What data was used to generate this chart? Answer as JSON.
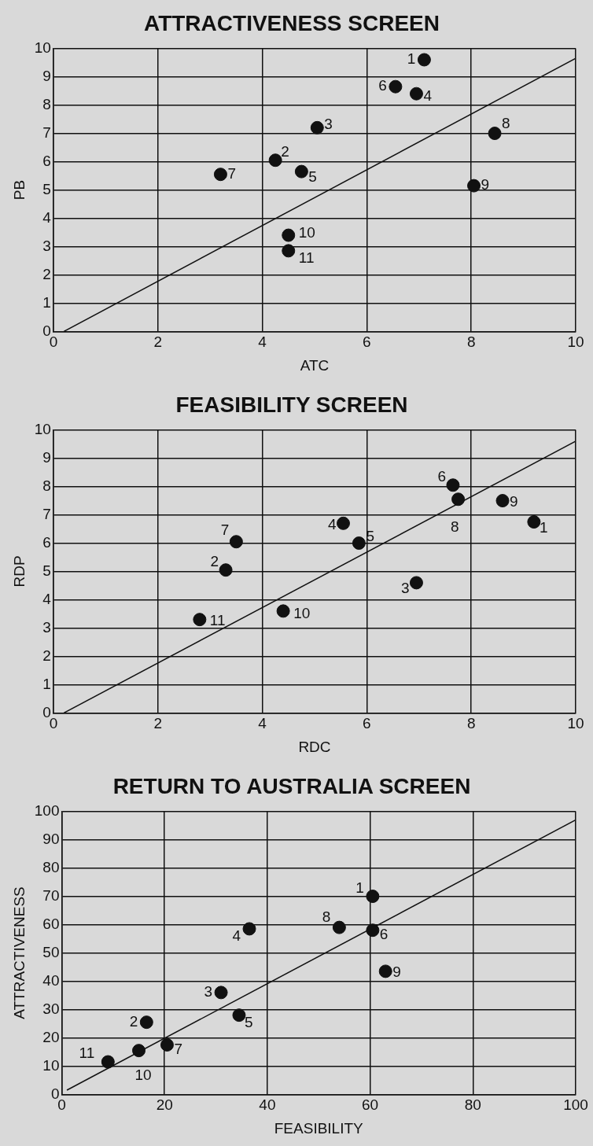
{
  "chart_data": [
    {
      "type": "scatter",
      "title": "ATTRACTIVENESS SCREEN",
      "xlabel": "ATC",
      "ylabel": "PB",
      "xlim": [
        0,
        10
      ],
      "ylim": [
        0,
        10
      ],
      "xticks": [
        0,
        2,
        4,
        6,
        8,
        10
      ],
      "yticks": [
        0,
        1,
        2,
        3,
        4,
        5,
        6,
        7,
        8,
        9,
        10
      ],
      "grid": true,
      "legend": false,
      "marker": "circle",
      "series": [
        {
          "color": "#111111",
          "x": [
            7.1,
            4.25,
            5.05,
            6.95,
            4.75,
            6.55,
            3.2,
            8.45,
            8.05,
            4.5,
            4.5
          ],
          "values": [
            9.6,
            6.05,
            7.2,
            8.4,
            5.65,
            8.65,
            5.55,
            7.0,
            5.15,
            3.4,
            2.85
          ]
        },
        {
          "type": "line",
          "marker": "none",
          "color": "#111111",
          "x": [
            0.2,
            10
          ],
          "values": [
            0,
            9.65
          ]
        }
      ],
      "annotations": [
        {
          "text": "1",
          "x": 7.1,
          "y": 9.6
        },
        {
          "text": "2",
          "x": 4.25,
          "y": 6.05
        },
        {
          "text": "3",
          "x": 5.05,
          "y": 7.2
        },
        {
          "text": "4",
          "x": 6.95,
          "y": 8.4
        },
        {
          "text": "5",
          "x": 4.75,
          "y": 5.65
        },
        {
          "text": "6",
          "x": 6.55,
          "y": 8.65
        },
        {
          "text": "7",
          "x": 3.2,
          "y": 5.55
        },
        {
          "text": "8",
          "x": 8.45,
          "y": 7.0
        },
        {
          "text": "9",
          "x": 8.05,
          "y": 5.15
        },
        {
          "text": "10",
          "x": 4.5,
          "y": 3.4
        },
        {
          "text": "11",
          "x": 4.5,
          "y": 2.85
        }
      ]
    },
    {
      "type": "scatter",
      "title": "FEASIBILITY SCREEN",
      "xlabel": "RDC",
      "ylabel": "RDP",
      "xlim": [
        0,
        10
      ],
      "ylim": [
        0,
        10
      ],
      "xticks": [
        0,
        2,
        4,
        6,
        8,
        10
      ],
      "yticks": [
        0,
        1,
        2,
        3,
        4,
        5,
        6,
        7,
        8,
        9,
        10
      ],
      "grid": true,
      "legend": false,
      "marker": "circle",
      "series": [
        {
          "color": "#111111",
          "x": [
            9.2,
            3.3,
            6.95,
            5.55,
            5.85,
            7.65,
            3.5,
            7.75,
            8.6,
            4.4,
            2.8
          ],
          "values": [
            6.75,
            5.05,
            4.6,
            6.7,
            6.0,
            8.05,
            6.05,
            7.55,
            7.5,
            3.6,
            3.3
          ]
        },
        {
          "type": "line",
          "marker": "none",
          "color": "#111111",
          "x": [
            0.2,
            10
          ],
          "values": [
            0,
            9.6
          ]
        }
      ],
      "annotations": [
        {
          "text": "1",
          "x": 9.2,
          "y": 6.75
        },
        {
          "text": "2",
          "x": 3.3,
          "y": 5.05
        },
        {
          "text": "3",
          "x": 6.95,
          "y": 4.6
        },
        {
          "text": "4",
          "x": 5.55,
          "y": 6.7
        },
        {
          "text": "5",
          "x": 5.85,
          "y": 6.0
        },
        {
          "text": "6",
          "x": 7.65,
          "y": 8.05
        },
        {
          "text": "7",
          "x": 3.5,
          "y": 6.05
        },
        {
          "text": "8",
          "x": 7.75,
          "y": 7.55
        },
        {
          "text": "9",
          "x": 8.6,
          "y": 7.5
        },
        {
          "text": "10",
          "x": 4.4,
          "y": 3.6
        },
        {
          "text": "11",
          "x": 2.8,
          "y": 3.3
        }
      ]
    },
    {
      "type": "scatter",
      "title": "RETURN TO AUSTRALIA SCREEN",
      "xlabel": "FEASIBILITY",
      "ylabel": "ATTRACTIVENESS",
      "xlim": [
        0,
        100
      ],
      "ylim": [
        0,
        100
      ],
      "xticks": [
        0,
        20,
        40,
        60,
        80,
        100
      ],
      "yticks": [
        0,
        10,
        20,
        30,
        40,
        50,
        60,
        70,
        80,
        90,
        100
      ],
      "grid": true,
      "legend": false,
      "marker": "circle",
      "series": [
        {
          "color": "#111111",
          "x": [
            60.5,
            16.5,
            31,
            36.5,
            34.5,
            60.5,
            20.5,
            54,
            63,
            15,
            9
          ],
          "values": [
            70,
            25.5,
            36,
            58.5,
            28,
            58,
            17.5,
            59,
            43.5,
            15.5,
            11.5
          ]
        },
        {
          "type": "line",
          "marker": "none",
          "color": "#111111",
          "x": [
            1,
            100
          ],
          "values": [
            1.5,
            97
          ]
        }
      ],
      "annotations": [
        {
          "text": "1",
          "x": 60.5,
          "y": 70
        },
        {
          "text": "2",
          "x": 16.5,
          "y": 25.5
        },
        {
          "text": "3",
          "x": 31,
          "y": 36
        },
        {
          "text": "4",
          "x": 36.5,
          "y": 58.5
        },
        {
          "text": "5",
          "x": 34.5,
          "y": 28
        },
        {
          "text": "6",
          "x": 60.5,
          "y": 58
        },
        {
          "text": "7",
          "x": 20.5,
          "y": 17.5
        },
        {
          "text": "8",
          "x": 54,
          "y": 59
        },
        {
          "text": "9",
          "x": 63,
          "y": 43.5
        },
        {
          "text": "10",
          "x": 15,
          "y": 15.5
        },
        {
          "text": "11",
          "x": 9,
          "y": 11.5
        }
      ]
    }
  ]
}
